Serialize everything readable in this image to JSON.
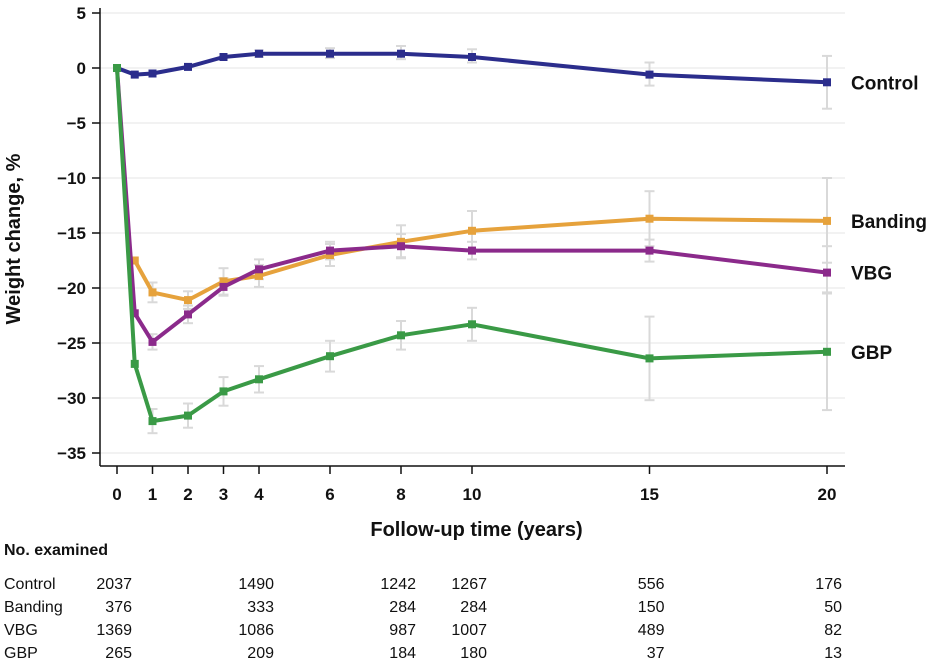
{
  "chart_data": {
    "type": "line",
    "xlabel": "Follow-up time (years)",
    "ylabel": "Weight change, %",
    "xlim": [
      0,
      20
    ],
    "ylim": [
      -35,
      5
    ],
    "xticks": [
      0,
      1,
      2,
      3,
      4,
      6,
      8,
      10,
      15,
      20
    ],
    "yticks": [
      5,
      0,
      -5,
      -10,
      -15,
      -20,
      -25,
      -30,
      -35
    ],
    "x_tick_labels": [
      "0",
      "1",
      "2",
      "3",
      "4",
      "6",
      "8",
      "10",
      "15",
      "20"
    ],
    "y_tick_labels": [
      "5",
      "0",
      "−5",
      "−10",
      "−15",
      "−20",
      "−25",
      "−30",
      "−35"
    ],
    "grid": true,
    "series": [
      {
        "name": "Control",
        "color": "#2b2d8c",
        "x": [
          0,
          0.5,
          1,
          2,
          3,
          4,
          6,
          8,
          10,
          15,
          20
        ],
        "y": [
          0,
          -0.6,
          -0.5,
          0.1,
          1.0,
          1.3,
          1.3,
          1.3,
          1.0,
          -0.6,
          -1.3
        ],
        "err_low": [
          null,
          null,
          null,
          null,
          null,
          1.0,
          0.9,
          0.8,
          0.5,
          -1.6,
          -3.7
        ],
        "err_high": [
          null,
          null,
          null,
          null,
          null,
          1.6,
          1.8,
          2.0,
          1.7,
          0.5,
          1.1
        ]
      },
      {
        "name": "Banding",
        "color": "#e6a23c",
        "x": [
          0.5,
          1,
          2,
          3,
          4,
          6,
          8,
          10,
          15,
          20
        ],
        "y": [
          -17.5,
          -20.4,
          -21.1,
          -19.4,
          -18.9,
          -17.0,
          -15.8,
          -14.8,
          -13.7,
          -13.9
        ],
        "err_low": [
          null,
          -21.3,
          -21.9,
          -20.6,
          -19.9,
          -18.0,
          -17.2,
          -16.5,
          -16.2,
          -17.7
        ],
        "err_high": [
          null,
          -19.5,
          -20.3,
          -18.2,
          -17.9,
          -16.0,
          -14.3,
          -13.0,
          -11.2,
          -10.0
        ]
      },
      {
        "name": "VBG",
        "color": "#8b2a8b",
        "x": [
          0,
          0.5,
          1,
          2,
          3,
          4,
          6,
          8,
          10,
          15,
          20
        ],
        "y": [
          0,
          -22.3,
          -24.9,
          -22.4,
          -19.9,
          -18.3,
          -16.6,
          -16.2,
          -16.6,
          -16.6,
          -18.6
        ],
        "err_low": [
          null,
          null,
          -25.6,
          -23.2,
          -20.7,
          -19.2,
          -17.4,
          -17.3,
          -17.4,
          -17.6,
          -20.4
        ],
        "err_high": [
          null,
          null,
          -24.2,
          -21.6,
          -19.1,
          -17.4,
          -15.8,
          -15.1,
          -15.8,
          -15.6,
          -16.2
        ]
      },
      {
        "name": "GBP",
        "color": "#3a9a46",
        "x": [
          0,
          0.5,
          1,
          2,
          3,
          4,
          6,
          8,
          10,
          15,
          20
        ],
        "y": [
          0,
          -26.9,
          -32.1,
          -31.6,
          -29.4,
          -28.3,
          -26.2,
          -24.3,
          -23.3,
          -26.4,
          -25.8
        ],
        "err_low": [
          null,
          null,
          -33.2,
          -32.7,
          -30.7,
          -29.5,
          -27.6,
          -25.6,
          -24.8,
          -30.2,
          -31.1
        ],
        "err_high": [
          null,
          null,
          -31.0,
          -30.5,
          -28.1,
          -27.1,
          -24.8,
          -23.0,
          -21.8,
          -22.6,
          -20.5
        ]
      }
    ]
  },
  "counts": {
    "heading": "No. examined",
    "columns_x": [
      0,
      4,
      8,
      10,
      15,
      20
    ],
    "rows": [
      {
        "label": "Control",
        "values": [
          "2037",
          "1490",
          "1242",
          "1267",
          "556",
          "176"
        ]
      },
      {
        "label": "Banding",
        "values": [
          "376",
          "333",
          "284",
          "284",
          "150",
          "50"
        ]
      },
      {
        "label": "VBG",
        "values": [
          "1369",
          "1086",
          "987",
          "1007",
          "489",
          "82"
        ]
      },
      {
        "label": "GBP",
        "values": [
          "265",
          "209",
          "184",
          "180",
          "37",
          "13"
        ]
      }
    ]
  }
}
